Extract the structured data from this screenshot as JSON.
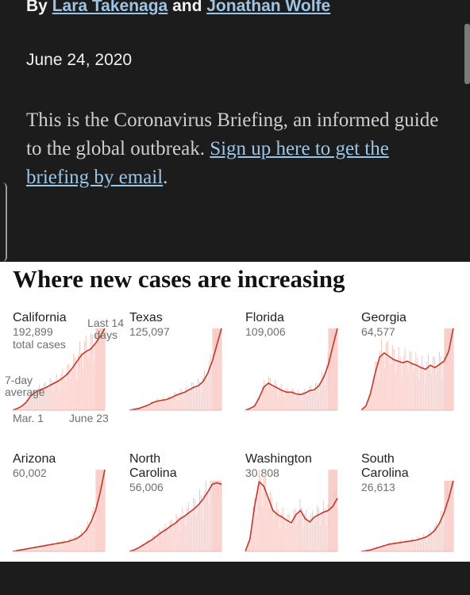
{
  "article": {
    "byline": {
      "prefix": "By",
      "author1": "Lara Takenaga",
      "connector": "and",
      "author2": "Jonathan Wolfe"
    },
    "date": "June 24, 2020",
    "intro_text": "This is the Coronavirus Briefing, an informed guide to the global outbreak.",
    "intro_link": "Sign up here to get the briefing by email",
    "intro_end": "."
  },
  "graphic": {
    "title": "Where new cases are increasing",
    "annotations": {
      "last14": [
        "Last 14",
        "days"
      ],
      "avg": [
        "7-day",
        "average"
      ],
      "start_date": "Mar. 1",
      "end_date": "June 23",
      "total_cases": "total cases"
    },
    "colors": {
      "line": "#c0392b",
      "fill": "#fbd7d3",
      "recent": "#f1a9a2",
      "bars": "#f6c3bd"
    }
  },
  "chart_data": [
    {
      "type": "area",
      "name": "California",
      "total": "192,899",
      "shape": [
        0,
        0.02,
        0.05,
        0.1,
        0.18,
        0.22,
        0.25,
        0.27,
        0.3,
        0.33,
        0.36,
        0.4,
        0.45,
        0.52,
        0.6,
        0.68,
        0.72,
        0.75,
        0.82,
        0.9,
        1.0
      ]
    },
    {
      "type": "area",
      "name": "Texas",
      "total": "125,097",
      "shape": [
        0,
        0.01,
        0.02,
        0.04,
        0.06,
        0.09,
        0.11,
        0.12,
        0.13,
        0.15,
        0.18,
        0.2,
        0.22,
        0.25,
        0.28,
        0.3,
        0.35,
        0.45,
        0.6,
        0.8,
        1.0
      ]
    },
    {
      "type": "area",
      "name": "Florida",
      "total": "109,006",
      "shape": [
        0,
        0.02,
        0.05,
        0.15,
        0.28,
        0.33,
        0.3,
        0.27,
        0.24,
        0.22,
        0.22,
        0.2,
        0.19,
        0.21,
        0.24,
        0.25,
        0.3,
        0.4,
        0.55,
        0.78,
        1.0
      ]
    },
    {
      "type": "area",
      "name": "Georgia",
      "total": "64,577",
      "shape": [
        0,
        0.05,
        0.2,
        0.45,
        0.65,
        0.7,
        0.66,
        0.62,
        0.6,
        0.58,
        0.6,
        0.57,
        0.55,
        0.52,
        0.5,
        0.55,
        0.52,
        0.56,
        0.6,
        0.72,
        1.0
      ]
    },
    {
      "type": "area",
      "name": "Arizona",
      "total": "60,002",
      "shape": [
        0,
        0.01,
        0.02,
        0.03,
        0.04,
        0.05,
        0.06,
        0.07,
        0.08,
        0.09,
        0.1,
        0.11,
        0.12,
        0.14,
        0.16,
        0.2,
        0.26,
        0.36,
        0.5,
        0.72,
        1.0
      ]
    },
    {
      "type": "area",
      "name": "North Carolina",
      "total": "56,006",
      "shape": [
        0,
        0.02,
        0.05,
        0.09,
        0.13,
        0.17,
        0.22,
        0.27,
        0.31,
        0.36,
        0.4,
        0.46,
        0.5,
        0.55,
        0.6,
        0.66,
        0.74,
        0.84,
        0.95,
        0.97,
        0.95
      ]
    },
    {
      "type": "area",
      "name": "Washington",
      "total": "30,808",
      "shape": [
        0,
        0.15,
        0.55,
        0.85,
        0.8,
        0.65,
        0.5,
        0.45,
        0.42,
        0.38,
        0.35,
        0.45,
        0.5,
        0.4,
        0.36,
        0.42,
        0.45,
        0.48,
        0.5,
        0.55,
        0.65
      ]
    },
    {
      "type": "area",
      "name": "South Carolina",
      "total": "26,613",
      "shape": [
        0,
        0.01,
        0.02,
        0.04,
        0.06,
        0.08,
        0.1,
        0.11,
        0.12,
        0.13,
        0.14,
        0.15,
        0.16,
        0.18,
        0.2,
        0.24,
        0.3,
        0.4,
        0.55,
        0.75,
        1.0
      ]
    }
  ]
}
